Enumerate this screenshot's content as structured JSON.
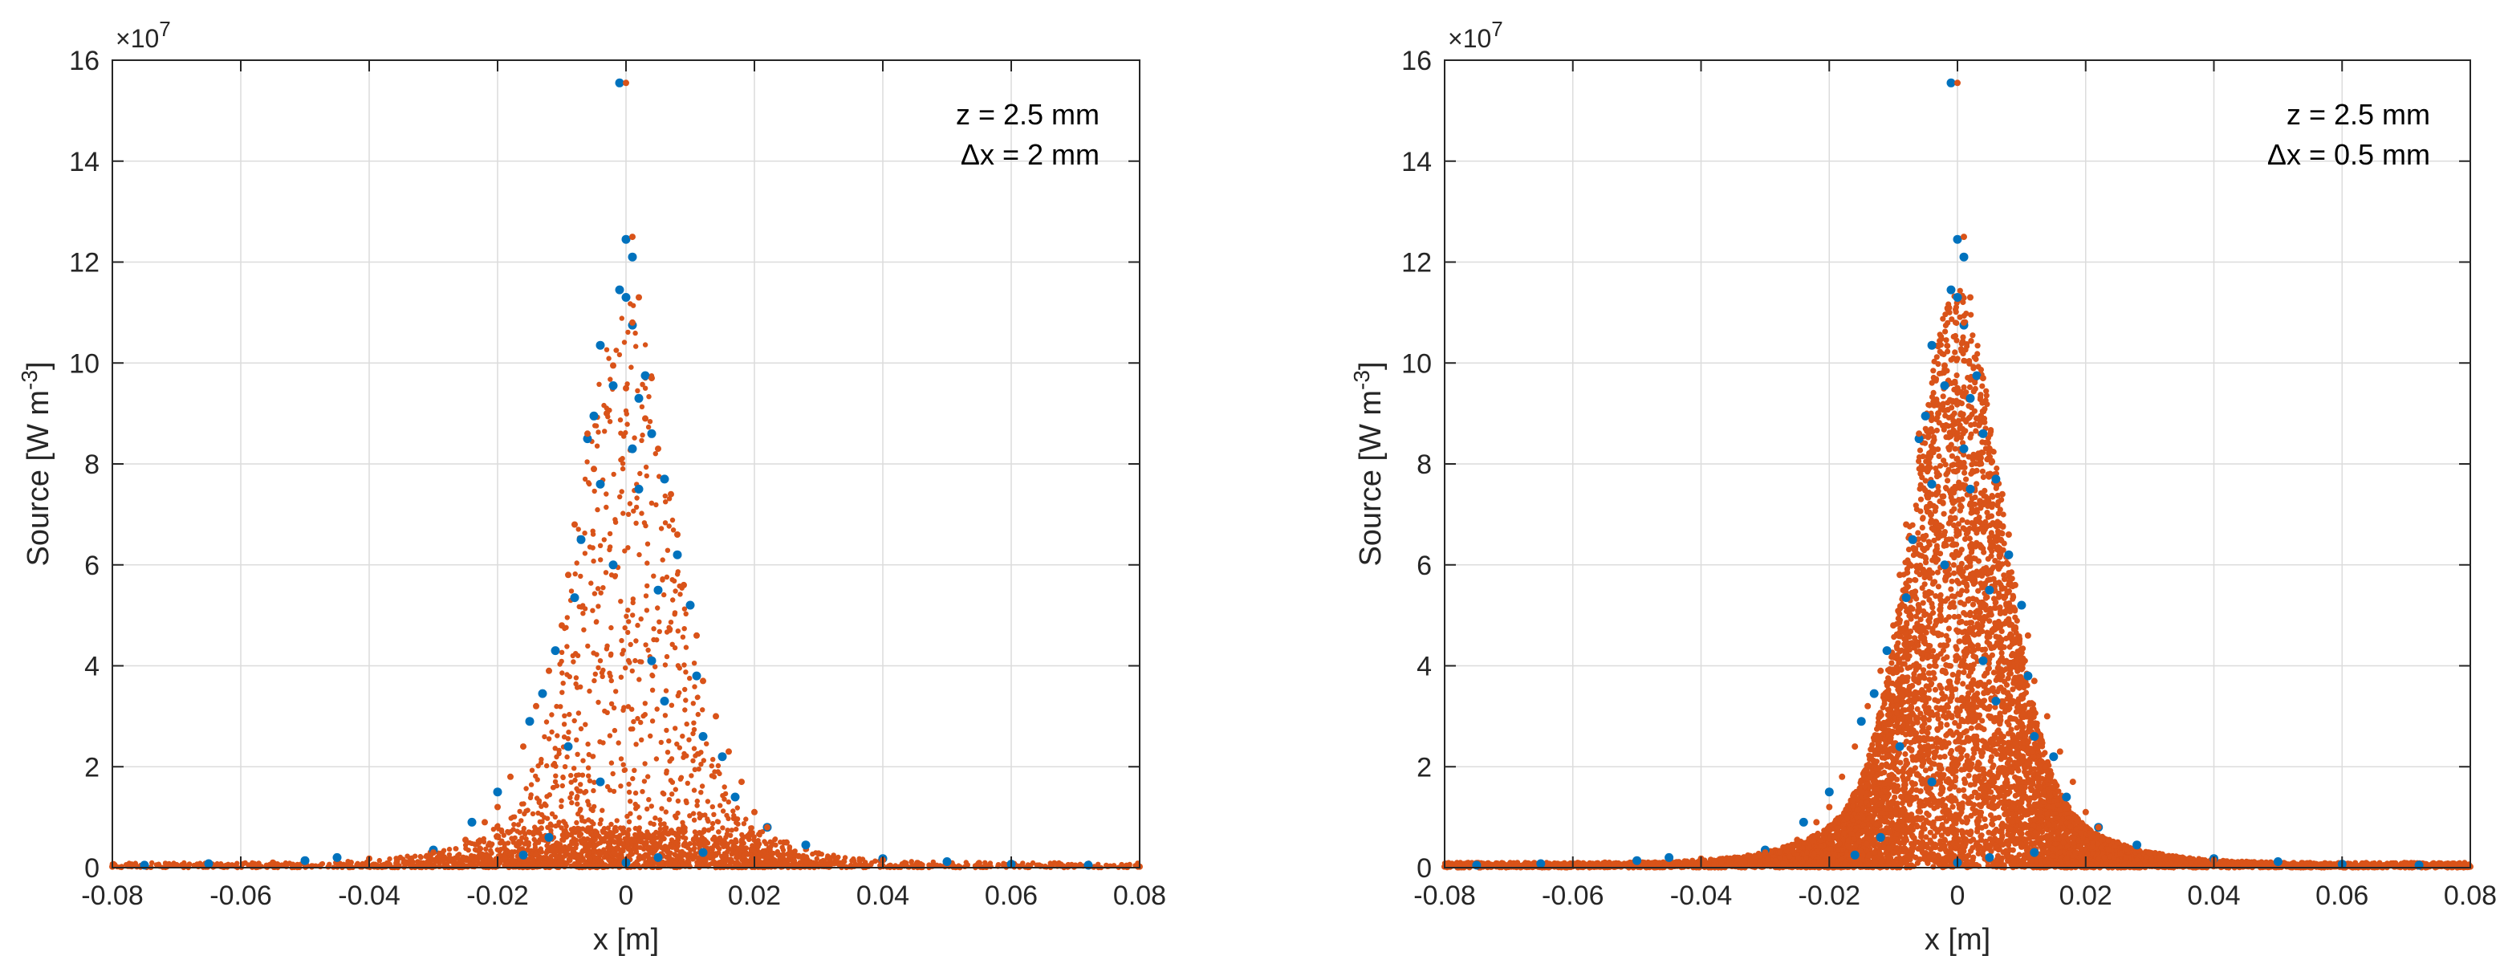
{
  "chart_data": [
    {
      "type": "scatter",
      "xlabel": "x [m]",
      "ylabel": "Source [W m",
      "ylabel_sup": "-3",
      "ylabel_close": "]",
      "xlim": [
        -0.08,
        0.08
      ],
      "ylim": [
        0,
        16
      ],
      "y_multiplier": "×10",
      "y_multiplier_exp": "7",
      "xticks": [
        "-0.08",
        "-0.06",
        "-0.04",
        "-0.02",
        "0",
        "0.02",
        "0.04",
        "0.06",
        "0.08"
      ],
      "yticks": [
        "0",
        "2",
        "4",
        "6",
        "8",
        "10",
        "12",
        "14",
        "16"
      ],
      "grid": true,
      "annotation": [
        "z = 2.5 mm",
        "Δx = 2 mm"
      ],
      "annotation_placement": "top-right",
      "colors": {
        "series1": "#0072BD",
        "series2": "#D95319"
      },
      "series": [
        {
          "color": "#0072BD",
          "points": [
            [
              -0.001,
              15.55
            ],
            [
              0.0,
              12.45
            ],
            [
              0.001,
              12.1
            ],
            [
              -0.001,
              11.45
            ],
            [
              0.0,
              11.3
            ],
            [
              0.001,
              10.75
            ],
            [
              -0.004,
              10.35
            ],
            [
              0.003,
              9.75
            ],
            [
              -0.002,
              9.55
            ],
            [
              0.002,
              9.3
            ],
            [
              -0.005,
              8.95
            ],
            [
              0.004,
              8.6
            ],
            [
              -0.006,
              8.5
            ],
            [
              0.001,
              8.3
            ],
            [
              0.006,
              7.7
            ],
            [
              -0.004,
              7.6
            ],
            [
              0.002,
              7.5
            ],
            [
              -0.007,
              6.5
            ],
            [
              0.008,
              6.2
            ],
            [
              -0.002,
              6.0
            ],
            [
              0.005,
              5.5
            ],
            [
              -0.008,
              5.35
            ],
            [
              0.01,
              5.2
            ],
            [
              -0.011,
              4.3
            ],
            [
              0.004,
              4.1
            ],
            [
              0.011,
              3.8
            ],
            [
              -0.013,
              3.45
            ],
            [
              0.006,
              3.3
            ],
            [
              -0.015,
              2.9
            ],
            [
              0.012,
              2.6
            ],
            [
              -0.009,
              2.4
            ],
            [
              0.015,
              2.2
            ],
            [
              -0.02,
              1.5
            ],
            [
              -0.004,
              1.7
            ],
            [
              0.017,
              1.4
            ],
            [
              -0.024,
              0.9
            ],
            [
              0.022,
              0.8
            ],
            [
              -0.012,
              0.6
            ],
            [
              0.028,
              0.45
            ],
            [
              -0.03,
              0.35
            ],
            [
              -0.045,
              0.2
            ],
            [
              0.04,
              0.18
            ],
            [
              -0.065,
              0.08
            ],
            [
              0.06,
              0.07
            ],
            [
              -0.075,
              0.05
            ],
            [
              0.072,
              0.05
            ],
            [
              0.05,
              0.12
            ],
            [
              -0.05,
              0.14
            ],
            [
              0.012,
              0.3
            ],
            [
              -0.016,
              0.25
            ],
            [
              0.005,
              0.2
            ],
            [
              0.0,
              0.1
            ]
          ]
        },
        {
          "color": "#D95319",
          "points": [
            [
              0.0,
              15.55
            ],
            [
              0.001,
              12.5
            ],
            [
              0.002,
              11.3
            ],
            [
              0.001,
              10.8
            ],
            [
              -0.002,
              9.95
            ],
            [
              0.004,
              9.7
            ],
            [
              0.0,
              9.5
            ],
            [
              -0.003,
              9.0
            ],
            [
              0.003,
              8.9
            ],
            [
              -0.006,
              8.6
            ],
            [
              0.005,
              8.3
            ],
            [
              -0.005,
              7.9
            ],
            [
              0.007,
              7.4
            ],
            [
              -0.008,
              6.8
            ],
            [
              0.008,
              6.6
            ],
            [
              -0.009,
              5.8
            ],
            [
              0.009,
              5.6
            ],
            [
              -0.01,
              4.8
            ],
            [
              0.011,
              4.6
            ],
            [
              -0.012,
              3.9
            ],
            [
              0.012,
              3.7
            ],
            [
              -0.014,
              3.2
            ],
            [
              0.014,
              3.0
            ],
            [
              -0.016,
              2.4
            ],
            [
              0.016,
              2.3
            ],
            [
              -0.018,
              1.8
            ],
            [
              0.018,
              1.7
            ],
            [
              -0.02,
              1.2
            ],
            [
              0.02,
              1.1
            ],
            [
              -0.022,
              0.9
            ],
            [
              0.022,
              0.8
            ],
            [
              -0.025,
              0.55
            ],
            [
              0.025,
              0.5
            ],
            [
              -0.03,
              0.3
            ],
            [
              0.03,
              0.28
            ],
            [
              -0.04,
              0.18
            ],
            [
              0.04,
              0.15
            ],
            [
              -0.055,
              0.1
            ],
            [
              0.055,
              0.09
            ],
            [
              -0.07,
              0.05
            ],
            [
              0.07,
              0.04
            ],
            [
              -0.08,
              0.02
            ],
            [
              0.08,
              0.02
            ]
          ]
        }
      ]
    },
    {
      "type": "scatter",
      "xlabel": "x [m]",
      "ylabel": "Source [W m",
      "ylabel_sup": "-3",
      "ylabel_close": "]",
      "xlim": [
        -0.08,
        0.08
      ],
      "ylim": [
        0,
        16
      ],
      "y_multiplier": "×10",
      "y_multiplier_exp": "7",
      "xticks": [
        "-0.08",
        "-0.06",
        "-0.04",
        "-0.02",
        "0",
        "0.02",
        "0.04",
        "0.06",
        "0.08"
      ],
      "yticks": [
        "0",
        "2",
        "4",
        "6",
        "8",
        "10",
        "12",
        "14",
        "16"
      ],
      "grid": true,
      "annotation": [
        "z = 2.5 mm",
        "Δx = 0.5 mm"
      ],
      "annotation_placement": "top-right",
      "colors": {
        "series1": "#0072BD",
        "series2": "#D95319"
      },
      "series": [
        {
          "color": "#0072BD",
          "points": [
            [
              -0.001,
              15.55
            ],
            [
              0.0,
              12.45
            ],
            [
              0.001,
              12.1
            ],
            [
              -0.001,
              11.45
            ],
            [
              0.0,
              11.3
            ],
            [
              0.001,
              10.75
            ],
            [
              -0.004,
              10.35
            ],
            [
              0.003,
              9.75
            ],
            [
              -0.002,
              9.55
            ],
            [
              0.002,
              9.3
            ],
            [
              -0.005,
              8.95
            ],
            [
              0.004,
              8.6
            ],
            [
              -0.006,
              8.5
            ],
            [
              0.001,
              8.3
            ],
            [
              0.006,
              7.7
            ],
            [
              -0.004,
              7.6
            ],
            [
              0.002,
              7.5
            ],
            [
              -0.007,
              6.5
            ],
            [
              0.008,
              6.2
            ],
            [
              -0.002,
              6.0
            ],
            [
              0.005,
              5.5
            ],
            [
              -0.008,
              5.35
            ],
            [
              0.01,
              5.2
            ],
            [
              -0.011,
              4.3
            ],
            [
              0.004,
              4.1
            ],
            [
              0.011,
              3.8
            ],
            [
              -0.013,
              3.45
            ],
            [
              0.006,
              3.3
            ],
            [
              -0.015,
              2.9
            ],
            [
              0.012,
              2.6
            ],
            [
              -0.009,
              2.4
            ],
            [
              0.015,
              2.2
            ],
            [
              -0.02,
              1.5
            ],
            [
              -0.004,
              1.7
            ],
            [
              0.017,
              1.4
            ],
            [
              -0.024,
              0.9
            ],
            [
              0.022,
              0.8
            ],
            [
              -0.012,
              0.6
            ],
            [
              0.028,
              0.45
            ],
            [
              -0.03,
              0.35
            ],
            [
              -0.045,
              0.2
            ],
            [
              0.04,
              0.18
            ],
            [
              -0.065,
              0.08
            ],
            [
              0.06,
              0.07
            ],
            [
              -0.075,
              0.05
            ],
            [
              0.072,
              0.05
            ],
            [
              0.05,
              0.12
            ],
            [
              -0.05,
              0.14
            ],
            [
              0.012,
              0.3
            ],
            [
              -0.016,
              0.25
            ],
            [
              0.005,
              0.2
            ],
            [
              0.0,
              0.1
            ]
          ]
        },
        {
          "color": "#D95319",
          "points": [
            [
              0.0,
              15.55
            ],
            [
              0.001,
              12.5
            ],
            [
              0.002,
              11.3
            ],
            [
              0.001,
              10.8
            ],
            [
              -0.002,
              9.95
            ],
            [
              0.004,
              9.7
            ],
            [
              0.0,
              9.5
            ],
            [
              -0.003,
              9.0
            ],
            [
              0.003,
              8.9
            ],
            [
              -0.006,
              8.6
            ],
            [
              0.005,
              8.3
            ],
            [
              -0.005,
              7.9
            ],
            [
              0.007,
              7.4
            ],
            [
              -0.008,
              6.8
            ],
            [
              0.008,
              6.6
            ],
            [
              -0.009,
              5.8
            ],
            [
              0.009,
              5.6
            ],
            [
              -0.01,
              4.8
            ],
            [
              0.011,
              4.6
            ],
            [
              -0.012,
              3.9
            ],
            [
              0.012,
              3.7
            ],
            [
              -0.014,
              3.2
            ],
            [
              0.014,
              3.0
            ],
            [
              -0.016,
              2.4
            ],
            [
              0.016,
              2.3
            ],
            [
              -0.018,
              1.8
            ],
            [
              0.018,
              1.7
            ],
            [
              -0.02,
              1.2
            ],
            [
              0.02,
              1.1
            ],
            [
              -0.022,
              0.9
            ],
            [
              0.022,
              0.8
            ],
            [
              -0.025,
              0.55
            ],
            [
              0.025,
              0.5
            ],
            [
              -0.03,
              0.3
            ],
            [
              0.03,
              0.28
            ],
            [
              -0.04,
              0.18
            ],
            [
              0.04,
              0.15
            ],
            [
              -0.055,
              0.1
            ],
            [
              0.055,
              0.09
            ],
            [
              -0.07,
              0.05
            ],
            [
              0.07,
              0.04
            ],
            [
              -0.08,
              0.02
            ],
            [
              0.08,
              0.02
            ]
          ]
        }
      ]
    }
  ]
}
